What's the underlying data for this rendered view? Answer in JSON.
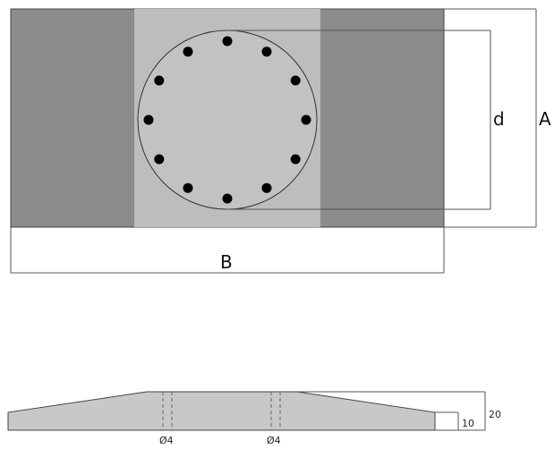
{
  "top_view": {
    "dimensions": {
      "depth_label": "A",
      "width_label": "B",
      "circle_label": "d"
    },
    "bolt_count": 12,
    "colors": {
      "outer_plate": "#8c8c8c",
      "center_strip": "#bdbdbd",
      "circle": "#c2c2c2",
      "bolt": "#000000"
    }
  },
  "side_view": {
    "height_total": "20",
    "height_edge": "10",
    "hole_labels": [
      "Ø4",
      "Ø4"
    ],
    "colors": {
      "body": "#c8c8c8"
    }
  }
}
